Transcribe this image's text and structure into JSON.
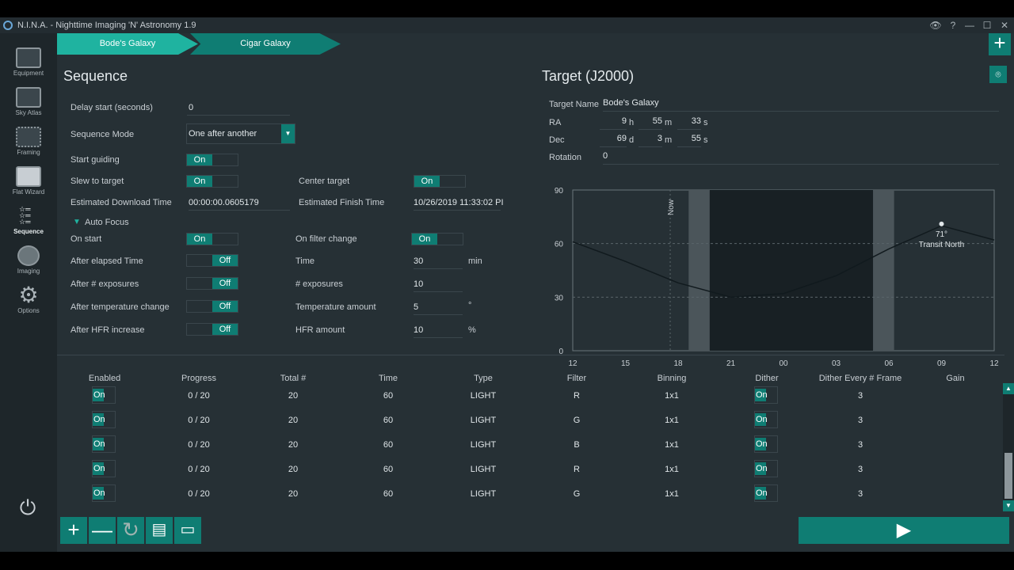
{
  "window": {
    "title": "N.I.N.A. - Nighttime Imaging 'N' Astronomy 1.9",
    "controls": [
      "👁",
      "?",
      "—",
      "☐",
      "✕"
    ]
  },
  "sidebar": {
    "items": [
      {
        "label": "Equipment",
        "icon": "telescope-icon"
      },
      {
        "label": "Sky Atlas",
        "icon": "map-icon"
      },
      {
        "label": "Framing",
        "icon": "framing-icon"
      },
      {
        "label": "Flat Wizard",
        "icon": "flat-wizard-icon"
      },
      {
        "label": "Sequence",
        "icon": "sequence-icon",
        "active": true
      },
      {
        "label": "Imaging",
        "icon": "imaging-icon"
      },
      {
        "label": "Options",
        "icon": "gear-icon"
      }
    ],
    "power_icon": "power-icon"
  },
  "tabs": [
    {
      "label": "Bode's Galaxy",
      "active": true
    },
    {
      "label": "Cigar Galaxy",
      "active": false
    }
  ],
  "sequence": {
    "title": "Sequence",
    "delay_label": "Delay start (seconds)",
    "delay_value": "0",
    "mode_label": "Sequence Mode",
    "mode_value": "One after another",
    "start_guiding_label": "Start guiding",
    "start_guiding": "On",
    "slew_label": "Slew to target",
    "slew": "On",
    "center_label": "Center target",
    "center": "On",
    "est_download_label": "Estimated Download Time",
    "est_download_value": "00:00:00.0605179",
    "est_finish_label": "Estimated Finish Time",
    "est_finish_value": "10/26/2019 11:33:02 PI",
    "autofocus_label": "Auto Focus",
    "af": {
      "on_start_label": "On start",
      "on_start": "On",
      "on_filter_label": "On filter change",
      "on_filter": "On",
      "elapsed_label": "After elapsed Time",
      "elapsed": "Off",
      "time_label": "Time",
      "time_value": "30",
      "time_unit": "min",
      "exposures_label": "After # exposures",
      "exposures": "Off",
      "num_exp_label": "# exposures",
      "num_exp_value": "10",
      "temp_label": "After temperature change",
      "temp": "Off",
      "temp_amount_label": "Temperature amount",
      "temp_amount_value": "5",
      "temp_unit": "°",
      "hfr_label": "After HFR increase",
      "hfr": "Off",
      "hfr_amount_label": "HFR amount",
      "hfr_amount_value": "10",
      "hfr_unit": "%"
    }
  },
  "target": {
    "title": "Target (J2000)",
    "name_label": "Target Name",
    "name_value": "Bode's Galaxy",
    "ra_label": "RA",
    "ra": {
      "h": "9",
      "h_unit": "h",
      "m": "55",
      "m_unit": "m",
      "s": "33",
      "s_unit": "s"
    },
    "dec_label": "Dec",
    "dec": {
      "d": "69",
      "d_unit": "d",
      "m": "3",
      "m_unit": "m",
      "s": "55",
      "s_unit": "s"
    },
    "rotation_label": "Rotation",
    "rotation_value": "0"
  },
  "chart_data": {
    "type": "line",
    "x_ticks": [
      "12",
      "15",
      "18",
      "21",
      "00",
      "03",
      "06",
      "09",
      "12"
    ],
    "y_ticks": [
      "90",
      "60",
      "30",
      "0"
    ],
    "ylim": [
      0,
      90
    ],
    "x": [
      "12",
      "15",
      "18",
      "21",
      "00",
      "03",
      "06",
      "09",
      "12"
    ],
    "altitude": [
      61,
      50,
      38,
      30,
      32,
      42,
      57,
      70,
      62
    ],
    "now_label": "Now",
    "transit_label": "Transit North",
    "transit_alt_label": "71°",
    "transit_x": "09",
    "transit_alt": 71
  },
  "grid": {
    "headers": [
      "Enabled",
      "Progress",
      "Total #",
      "Time",
      "Type",
      "Filter",
      "Binning",
      "Dither",
      "Dither Every # Frame",
      "Gain"
    ],
    "rows": [
      {
        "enabled": "On",
        "progress": "0 / 20",
        "total": "20",
        "time": "60",
        "type": "LIGHT",
        "filter": "R",
        "binning": "1x1",
        "dither": "On",
        "dither_every": "3"
      },
      {
        "enabled": "On",
        "progress": "0 / 20",
        "total": "20",
        "time": "60",
        "type": "LIGHT",
        "filter": "G",
        "binning": "1x1",
        "dither": "On",
        "dither_every": "3"
      },
      {
        "enabled": "On",
        "progress": "0 / 20",
        "total": "20",
        "time": "60",
        "type": "LIGHT",
        "filter": "B",
        "binning": "1x1",
        "dither": "On",
        "dither_every": "3"
      },
      {
        "enabled": "On",
        "progress": "0 / 20",
        "total": "20",
        "time": "60",
        "type": "LIGHT",
        "filter": "R",
        "binning": "1x1",
        "dither": "On",
        "dither_every": "3"
      },
      {
        "enabled": "On",
        "progress": "0 / 20",
        "total": "20",
        "time": "60",
        "type": "LIGHT",
        "filter": "G",
        "binning": "1x1",
        "dither": "On",
        "dither_every": "3"
      }
    ]
  },
  "toolbar": {
    "add_icon": "plus-icon",
    "remove_icon": "minus-icon",
    "reset_icon": "refresh-icon",
    "save_icon": "save-icon",
    "load_icon": "open-folder-icon",
    "start_icon": "play-icon"
  },
  "colors": {
    "accent": "#0f7d73",
    "accent_light": "#1fb3a0",
    "bg": "#263035",
    "sidebar": "#1e262a"
  }
}
